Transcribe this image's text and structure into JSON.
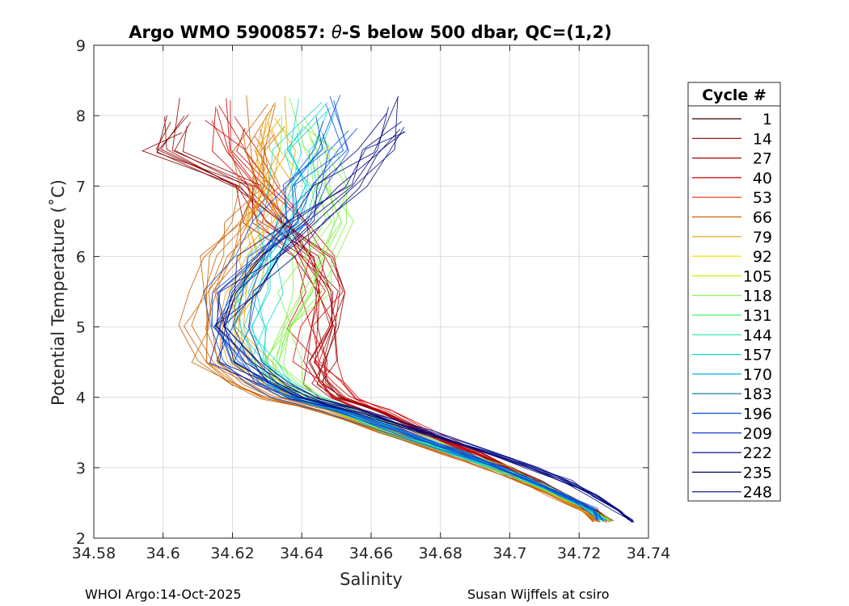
{
  "chart_data": {
    "type": "line",
    "title_prefix": "Argo WMO 5900857: ",
    "title_theta": "θ",
    "title_suffix": "-S below 500 dbar,  QC=(1,2)",
    "xlabel": "Salinity",
    "ylabel": "Potential Temperature (˚C)",
    "xlim": [
      34.58,
      34.74
    ],
    "ylim": [
      2,
      9
    ],
    "xticks": [
      34.58,
      34.6,
      34.62,
      34.64,
      34.66,
      34.68,
      34.7,
      34.72,
      34.74
    ],
    "xtick_labels": [
      "34.58",
      "34.6",
      "34.62",
      "34.64",
      "34.66",
      "34.68",
      "34.7",
      "34.72",
      "34.74"
    ],
    "yticks": [
      2,
      3,
      4,
      5,
      6,
      7,
      8,
      9
    ],
    "ytick_labels": [
      "2",
      "3",
      "4",
      "5",
      "6",
      "7",
      "8",
      "9"
    ],
    "grid": true,
    "legend_position": "outside-right",
    "legend_title": "Cycle #",
    "legend": [
      {
        "label": "1",
        "color": "#3a0000"
      },
      {
        "label": "14",
        "color": "#8b0000"
      },
      {
        "label": "27",
        "color": "#b00000"
      },
      {
        "label": "40",
        "color": "#d00000"
      },
      {
        "label": "53",
        "color": "#e83000"
      },
      {
        "label": "66",
        "color": "#cc6000"
      },
      {
        "label": "79",
        "color": "#e8a000"
      },
      {
        "label": "92",
        "color": "#f0e000"
      },
      {
        "label": "105",
        "color": "#c8f000"
      },
      {
        "label": "118",
        "color": "#80f040"
      },
      {
        "label": "131",
        "color": "#40f070"
      },
      {
        "label": "144",
        "color": "#20e8a0"
      },
      {
        "label": "157",
        "color": "#10d8d0"
      },
      {
        "label": "170",
        "color": "#00b0e0"
      },
      {
        "label": "183",
        "color": "#0070b0"
      },
      {
        "label": "196",
        "color": "#0050e0"
      },
      {
        "label": "209",
        "color": "#0020c0"
      },
      {
        "label": "222",
        "color": "#001090"
      },
      {
        "label": "235",
        "color": "#000860"
      },
      {
        "label": "248",
        "color": "#000880"
      }
    ],
    "series_shape": {
      "theta": [
        8.0,
        7.5,
        7.0,
        6.5,
        6.0,
        5.5,
        5.0,
        4.5,
        4.2,
        4.0,
        3.8,
        3.5,
        3.2,
        3.0,
        2.8,
        2.6,
        2.4,
        2.25
      ],
      "groups": [
        {
          "color": "#8b0000",
          "salinity": [
            34.605,
            34.6,
            34.625,
            34.63,
            34.645,
            34.648,
            34.646,
            34.645,
            34.645,
            34.65,
            34.662,
            34.675,
            34.69,
            34.7,
            34.708,
            34.716,
            34.724,
            34.729
          ]
        },
        {
          "color": "#d00000",
          "salinity": [
            34.615,
            34.62,
            34.63,
            34.635,
            34.643,
            34.645,
            34.643,
            34.644,
            34.648,
            34.652,
            34.662,
            34.675,
            34.69,
            34.699,
            34.707,
            34.715,
            34.722,
            34.728
          ]
        },
        {
          "color": "#cc6000",
          "salinity": [
            34.63,
            34.628,
            34.628,
            34.624,
            34.618,
            34.613,
            34.612,
            34.616,
            34.624,
            34.632,
            34.648,
            34.665,
            34.683,
            34.694,
            34.704,
            34.713,
            34.721,
            34.725
          ]
        },
        {
          "color": "#e8a000",
          "salinity": [
            34.632,
            34.63,
            34.63,
            34.628,
            34.625,
            34.62,
            34.62,
            34.624,
            34.63,
            34.638,
            34.65,
            34.666,
            34.684,
            34.695,
            34.705,
            34.714,
            34.722,
            34.726
          ]
        },
        {
          "color": "#80f040",
          "salinity": [
            34.64,
            34.642,
            34.645,
            34.648,
            34.645,
            34.64,
            34.635,
            34.633,
            34.636,
            34.642,
            34.654,
            34.669,
            34.686,
            34.697,
            34.706,
            34.715,
            34.723,
            34.729
          ]
        },
        {
          "color": "#10d8d0",
          "salinity": [
            34.645,
            34.64,
            34.638,
            34.636,
            34.632,
            34.628,
            34.626,
            34.628,
            34.634,
            34.64,
            34.653,
            34.668,
            34.685,
            34.696,
            34.706,
            34.715,
            34.723,
            34.727
          ]
        },
        {
          "color": "#0050e0",
          "salinity": [
            34.65,
            34.648,
            34.64,
            34.635,
            34.627,
            34.62,
            34.616,
            34.62,
            34.628,
            34.636,
            34.651,
            34.668,
            34.686,
            34.697,
            34.707,
            34.716,
            34.724,
            34.726
          ]
        },
        {
          "color": "#000880",
          "salinity": [
            34.668,
            34.66,
            34.65,
            34.64,
            34.63,
            34.62,
            34.616,
            34.622,
            34.632,
            34.64,
            34.656,
            34.675,
            34.694,
            34.706,
            34.716,
            34.724,
            34.731,
            34.735
          ]
        }
      ]
    }
  },
  "footer": {
    "left": "WHOI Argo:14-Oct-2025",
    "right": "Susan Wijffels at csiro"
  }
}
